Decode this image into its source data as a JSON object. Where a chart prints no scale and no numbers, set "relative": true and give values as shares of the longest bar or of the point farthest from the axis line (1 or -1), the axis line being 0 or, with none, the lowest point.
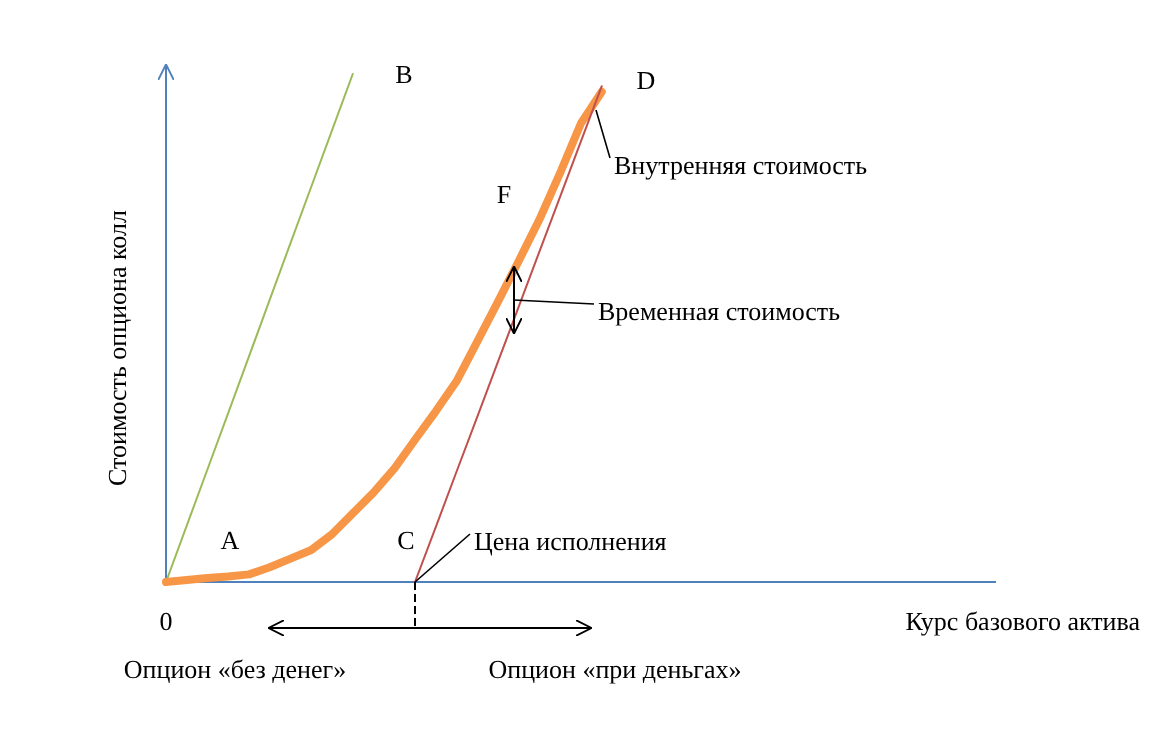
{
  "chart_data": {
    "type": "line",
    "relative": true,
    "xlabel": "Курс базового актива",
    "ylabel": "Стоимость опциона колл",
    "line_style": "solid",
    "categories": [
      null,
      null,
      null,
      null,
      null,
      null,
      null,
      null,
      null,
      null,
      null,
      null,
      null,
      null,
      null,
      null,
      null,
      null,
      null,
      null,
      null,
      null,
      null,
      null,
      null,
      null,
      null,
      null,
      null,
      null,
      null,
      null,
      null,
      null,
      null,
      null,
      null,
      null,
      null,
      null,
      null
    ],
    "series": [
      {
        "color": "#9bbb59",
        "values": [
          0,
          0.111,
          0.222,
          0.333,
          0.444,
          0.556,
          0.667,
          0.778,
          0.889,
          1,
          null,
          null,
          null,
          null,
          null,
          null,
          null,
          null,
          null,
          null,
          null,
          null,
          null,
          null,
          null,
          null,
          null,
          null,
          null,
          null,
          null,
          null,
          null,
          null,
          null,
          null,
          null,
          null,
          null,
          null,
          null
        ]
      },
      {
        "color": "#f79646",
        "values": [
          0,
          0.004,
          0.008,
          0.011,
          0.015,
          0.029,
          0.046,
          0.063,
          0.094,
          0.135,
          0.176,
          0.223,
          0.28,
          0.336,
          0.395,
          0.473,
          0.552,
          0.632,
          0.714,
          0.806,
          0.903,
          0.965,
          null,
          null,
          null,
          null,
          null,
          null,
          null,
          null,
          null,
          null,
          null,
          null,
          null,
          null,
          null,
          null,
          null,
          null,
          null
        ]
      },
      {
        "color": "#c0504d",
        "values": [
          null,
          null,
          null,
          null,
          null,
          null,
          null,
          null,
          null,
          null,
          null,
          null,
          0,
          0.108,
          0.217,
          0.325,
          0.434,
          0.542,
          0.651,
          0.759,
          0.868,
          0.976,
          null,
          null,
          null,
          null,
          null,
          null,
          null,
          null,
          null,
          null,
          null,
          null,
          null,
          null,
          null,
          null,
          null,
          null,
          null
        ]
      }
    ],
    "annotations": [
      "A",
      "B",
      "C",
      "D",
      "F",
      "Внутренняя стоимость",
      "Временная стоимость",
      "Цена исполнения",
      "0",
      "Опцион «без денег»",
      "Опцион «при деньгах»"
    ]
  }
}
